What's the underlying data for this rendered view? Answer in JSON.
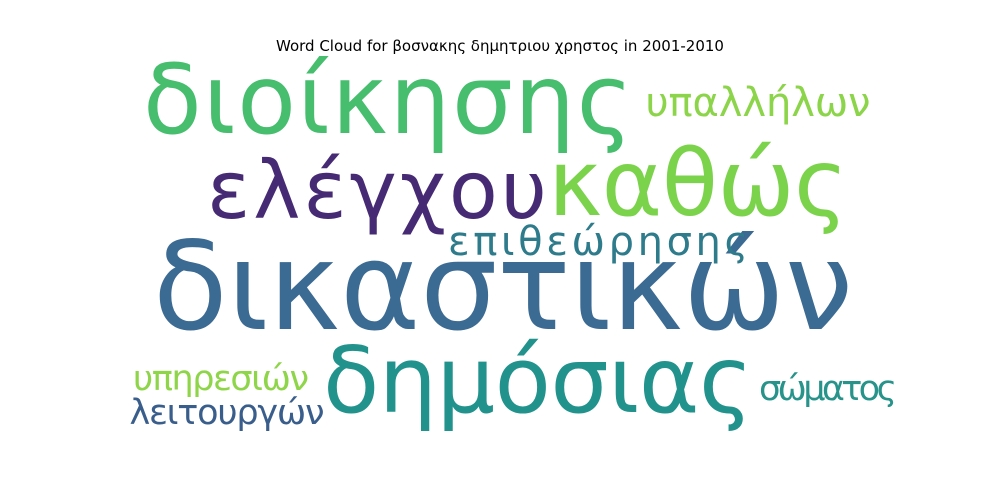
{
  "chart_data": {
    "type": "wordcloud",
    "title": "Word Cloud for βοσνακης δημητριου χρηστος in 2001-2010",
    "words": [
      {
        "text": "δικαστικών",
        "weight": 1.0,
        "color": "#3b6a93"
      },
      {
        "text": "διοίκησης",
        "weight": 0.8,
        "color": "#46be6e"
      },
      {
        "text": "καθώς",
        "weight": 0.78,
        "color": "#7bd34c"
      },
      {
        "text": "δημόσιας",
        "weight": 0.75,
        "color": "#21928c"
      },
      {
        "text": "ελέγχου",
        "weight": 0.68,
        "color": "#462b74"
      },
      {
        "text": "επιθεώρησης",
        "weight": 0.36,
        "color": "#2e7b8c"
      },
      {
        "text": "υπαλλήλων",
        "weight": 0.36,
        "color": "#8cd44a"
      },
      {
        "text": "υπηρεσιών",
        "weight": 0.32,
        "color": "#8fd54a"
      },
      {
        "text": "σώματος",
        "weight": 0.32,
        "color": "#27938a"
      },
      {
        "text": "λειτουργών",
        "weight": 0.32,
        "color": "#3a5e8c"
      }
    ]
  }
}
